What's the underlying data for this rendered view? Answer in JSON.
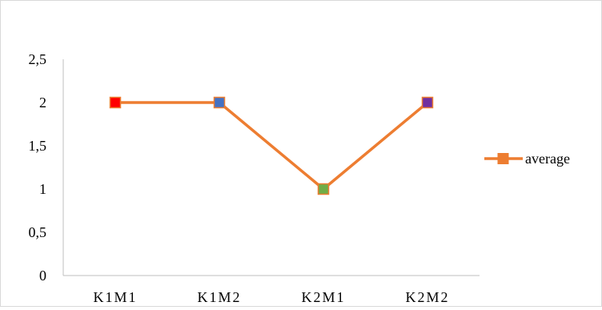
{
  "chart_data": {
    "type": "line",
    "categories": [
      "K1M1",
      "K1M2",
      "K2M1",
      "K2M2"
    ],
    "y_ticks": [
      "0",
      "0,5",
      "1",
      "1,5",
      "2",
      "2,5"
    ],
    "y_tick_values": [
      0,
      0.5,
      1,
      1.5,
      2,
      2.5
    ],
    "ylim": [
      0,
      2.5
    ],
    "grid": false,
    "legend_position": "right",
    "series": [
      {
        "name": "average",
        "values": [
          2,
          2,
          1,
          2
        ],
        "line_color": "#ED7D31",
        "marker_colors": [
          "#FF0000",
          "#4472C4",
          "#70AD47",
          "#7030A0"
        ]
      }
    ]
  }
}
